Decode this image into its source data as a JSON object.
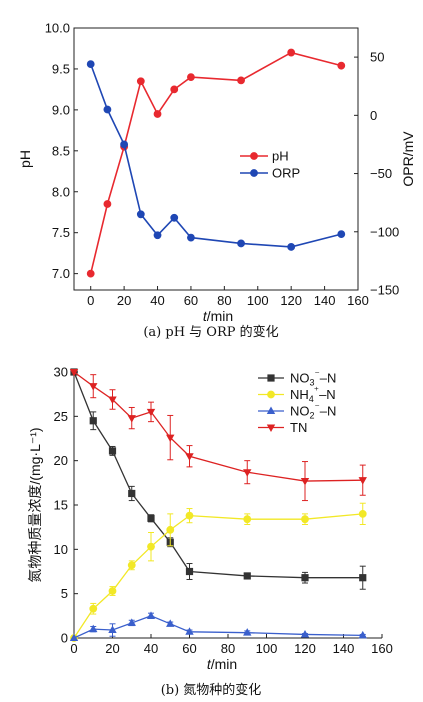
{
  "chart_data": [
    {
      "type": "line",
      "caption": "(a) pH 与 ORP 的变化",
      "xlabel_italic": "t",
      "xlabel_unit": "/min",
      "ylabel": "pH",
      "ylabel_right": "OPR/mV",
      "xlim": [
        -10,
        160
      ],
      "ylim": [
        6.8,
        10.0
      ],
      "ylim_right": [
        -150,
        75
      ],
      "xticks": [
        "0",
        "20",
        "40",
        "60",
        "80",
        "100",
        "120",
        "140",
        "160"
      ],
      "yticks": [
        "7.0",
        "7.5",
        "8.0",
        "8.5",
        "9.0",
        "9.5",
        "10.0"
      ],
      "yticks_right": [
        "50",
        "0",
        "−50",
        "−100",
        "−150"
      ],
      "legend_position": "center-right",
      "series": [
        {
          "name": "pH",
          "axis": "left",
          "color": "#e8292f",
          "marker": "circle",
          "x": [
            0,
            10,
            20,
            30,
            40,
            50,
            60,
            90,
            120,
            150
          ],
          "y": [
            7.0,
            7.85,
            8.55,
            9.35,
            8.95,
            9.25,
            9.4,
            9.36,
            9.7,
            9.54
          ]
        },
        {
          "name": "ORP",
          "axis": "right",
          "color": "#1f47b4",
          "marker": "circle",
          "x": [
            0,
            10,
            20,
            30,
            40,
            50,
            60,
            90,
            120,
            150
          ],
          "y": [
            44,
            5,
            -25,
            -85,
            -103,
            -88,
            -105,
            -110,
            -113,
            -102
          ]
        }
      ]
    },
    {
      "type": "line",
      "caption": "(b) 氮物种的变化",
      "xlabel_italic": "t",
      "xlabel_unit": "/min",
      "ylabel": "氮物种质量浓度/(mg·L⁻¹)",
      "xlim": [
        0,
        160
      ],
      "ylim": [
        0,
        30
      ],
      "xticks": [
        "0",
        "20",
        "40",
        "60",
        "80",
        "100",
        "120",
        "140",
        "160"
      ],
      "yticks": [
        "0",
        "5",
        "10",
        "15",
        "20",
        "25",
        "30"
      ],
      "legend_position": "top-right",
      "series": [
        {
          "name_parts": [
            "NO",
            "3",
            "⁻",
            "–N"
          ],
          "color": "#333333",
          "marker": "square",
          "x": [
            0,
            10,
            20,
            30,
            40,
            50,
            60,
            90,
            120,
            150
          ],
          "y": [
            30,
            24.5,
            21.1,
            16.3,
            13.5,
            10.8,
            7.5,
            7.0,
            6.8,
            6.8
          ],
          "err": [
            0,
            1.0,
            0.5,
            0.8,
            0.4,
            0.5,
            0.9,
            0.3,
            0.6,
            1.3
          ]
        },
        {
          "name_parts": [
            "NH",
            "4",
            "⁺",
            "–N"
          ],
          "color": "#f2e826",
          "marker": "circle",
          "x": [
            0,
            10,
            20,
            30,
            40,
            50,
            60,
            90,
            120,
            150
          ],
          "y": [
            0,
            3.3,
            5.3,
            8.2,
            10.3,
            12.2,
            13.8,
            13.4,
            13.4,
            14.0
          ],
          "err": [
            0,
            0.6,
            0.5,
            0.5,
            1.6,
            1.8,
            0.8,
            0.6,
            0.6,
            1.2
          ]
        },
        {
          "name_parts": [
            "NO",
            "2",
            "⁻",
            "–N"
          ],
          "color": "#3a5fcc",
          "marker": "triangle-up",
          "x": [
            0,
            10,
            20,
            30,
            40,
            50,
            60,
            90,
            120,
            150
          ],
          "y": [
            0,
            1.0,
            0.9,
            1.7,
            2.5,
            1.6,
            0.7,
            0.6,
            0.4,
            0.3
          ],
          "err": [
            0,
            0.3,
            0.7,
            0.3,
            0.3,
            0.2,
            0.2,
            0.2,
            0.1,
            0.1
          ]
        },
        {
          "name_parts": [
            "TN"
          ],
          "color": "#dd2222",
          "marker": "triangle-down",
          "x": [
            0,
            10,
            20,
            30,
            40,
            50,
            60,
            90,
            120,
            150
          ],
          "y": [
            30,
            28.4,
            26.9,
            24.8,
            25.5,
            22.6,
            20.5,
            18.7,
            17.7,
            17.8
          ],
          "err": [
            0,
            1.3,
            1.1,
            1.2,
            1.1,
            2.5,
            1.2,
            1.3,
            2.2,
            1.7
          ]
        }
      ]
    }
  ]
}
